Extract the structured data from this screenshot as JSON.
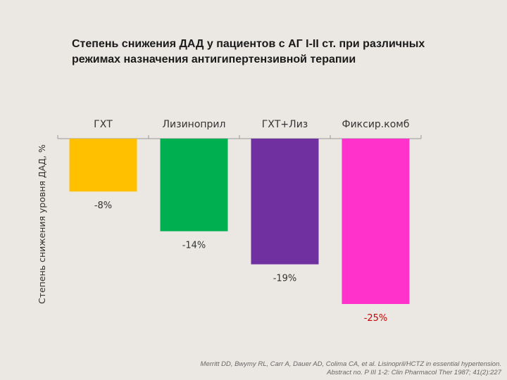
{
  "title": {
    "line1": "Степень снижения ДАД у пациентов с АГ I-II ст. при различных",
    "line2": "режимах назначения антигипертензивной терапии"
  },
  "source": {
    "line1": "Merritt DD, Bwymy RL, Carr A, Dauer AD, Colima CA, et al. Lisinopril/HCTZ in essential hypertension.",
    "line2": "Abstract no. P III 1-2: Clin   Pharmacol Ther 1987; 41(2):227"
  },
  "chart_data": {
    "type": "bar",
    "categories": [
      "ГХТ",
      "Лизиноприл",
      "ГХТ+Лиз",
      "Фиксир.комб"
    ],
    "values": [
      -8,
      -14,
      -19,
      -25
    ],
    "data_labels": [
      "-8%",
      "-14%",
      "-19%",
      "-25%"
    ],
    "colors": [
      "#ffc000",
      "#00b050",
      "#7030a0",
      "#ff33cc"
    ],
    "label_colors": [
      "#333333",
      "#333333",
      "#333333",
      "#cc0000"
    ],
    "ylabel": "Степень снижения уровня ДАД, %",
    "ylim": [
      -25,
      0
    ],
    "category_axis_position": "top",
    "grid": false,
    "legend": "none"
  }
}
